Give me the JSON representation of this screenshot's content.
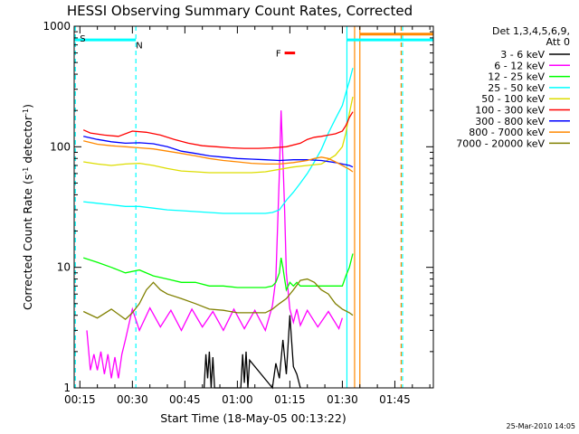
{
  "chart_data": {
    "type": "line",
    "title": "HESSI Observing Summary Count Rates, Corrected",
    "xlabel": "Start Time (18-May-05 00:13:22)",
    "ylabel_main": "Corrected Count Rate (s",
    "ylabel_sup1": "-1",
    "ylabel_mid": " detector",
    "ylabel_sup2": "-1",
    "ylabel_end": ")",
    "yscale": "log",
    "ylim": [
      1,
      1000
    ],
    "xlim_minutes": [
      13.37,
      116
    ],
    "x_ticks": [
      {
        "m": 15,
        "label": "00:15"
      },
      {
        "m": 30,
        "label": "00:30"
      },
      {
        "m": 45,
        "label": "00:45"
      },
      {
        "m": 60,
        "label": "01:00"
      },
      {
        "m": 75,
        "label": "01:15"
      },
      {
        "m": 90,
        "label": "01:30"
      },
      {
        "m": 105,
        "label": "01:45"
      }
    ],
    "y_ticks": [
      {
        "v": 1,
        "label": "1"
      },
      {
        "v": 10,
        "label": "10"
      },
      {
        "v": 100,
        "label": "100"
      },
      {
        "v": 1000,
        "label": "1000"
      }
    ],
    "legend_title": [
      "Det 1,3,4,5,6,9,",
      "Att 0"
    ],
    "timestamp": "25-Mar-2010 14:05",
    "series": [
      {
        "name": "3 - 6 keV",
        "color": "#000000",
        "x": [
          50.5,
          51,
          51.5,
          52,
          52.5,
          53,
          53.5,
          61,
          61.5,
          62,
          62.5,
          63,
          63.5,
          70,
          71,
          72,
          73,
          74,
          75,
          76,
          77,
          78
        ],
        "y": [
          1,
          1.9,
          1.2,
          2,
          1,
          1.8,
          1,
          1,
          1.9,
          1.1,
          2,
          1,
          1.7,
          1,
          1.6,
          1.2,
          2.5,
          1.3,
          4,
          1.5,
          1.3,
          1
        ]
      },
      {
        "name": "6 - 12 keV",
        "color": "#ff00ff",
        "x": [
          17,
          18,
          19,
          20,
          21,
          22,
          23,
          24,
          25,
          26,
          27,
          28,
          30,
          32,
          35,
          38,
          41,
          44,
          47,
          50,
          53,
          56,
          59,
          62,
          65,
          68,
          70,
          71,
          72,
          72.5,
          73,
          73.5,
          74,
          75,
          76,
          77,
          78,
          80,
          83,
          86,
          89,
          90
        ],
        "y": [
          3,
          1.4,
          1.9,
          1.4,
          2,
          1.3,
          1.9,
          1.2,
          1.8,
          1.2,
          1.9,
          2.5,
          4.5,
          3,
          4.6,
          3.2,
          4.4,
          3,
          4.5,
          3.2,
          4.3,
          3,
          4.5,
          3.1,
          4.4,
          3,
          4.8,
          8,
          60,
          200,
          80,
          30,
          9,
          4.5,
          3.5,
          4.5,
          3.3,
          4.4,
          3.2,
          4.3,
          3.1,
          3.8
        ]
      },
      {
        "name": "12 - 25 keV",
        "color": "#00ff00",
        "x": [
          16,
          20,
          24,
          28,
          32,
          36,
          40,
          44,
          48,
          52,
          56,
          60,
          64,
          68,
          70,
          71,
          72,
          72.5,
          73,
          73.5,
          74,
          75,
          76,
          77,
          78,
          80,
          82,
          84,
          86,
          88,
          90,
          91,
          92,
          93
        ],
        "y": [
          12,
          11,
          10,
          9,
          9.5,
          8.5,
          8,
          7.5,
          7.5,
          7,
          7,
          6.8,
          6.8,
          6.8,
          7,
          7.5,
          9,
          12,
          10,
          8,
          6.5,
          7.5,
          7,
          7.5,
          7,
          7,
          7,
          7,
          7,
          7,
          7,
          8.5,
          10,
          13
        ]
      },
      {
        "name": "25 - 50 keV",
        "color": "#00ffff",
        "x": [
          16,
          20,
          24,
          28,
          32,
          36,
          40,
          44,
          48,
          52,
          56,
          60,
          64,
          68,
          70,
          72,
          74,
          76,
          78,
          80,
          82,
          84,
          86,
          88,
          90,
          91,
          92,
          93
        ],
        "y": [
          35,
          34,
          33,
          32,
          32,
          31,
          30,
          29.5,
          29,
          28.5,
          28,
          28,
          28,
          28,
          28.5,
          30,
          36,
          42,
          50,
          60,
          75,
          95,
          130,
          170,
          220,
          280,
          350,
          450
        ]
      },
      {
        "name": "50 - 100 keV",
        "color": "#dddd00",
        "x": [
          16,
          20,
          24,
          28,
          32,
          36,
          40,
          44,
          48,
          52,
          56,
          60,
          64,
          68,
          72,
          76,
          80,
          84,
          88,
          90,
          91,
          92,
          93
        ],
        "y": [
          75,
          72,
          70,
          72,
          73,
          70,
          66,
          63,
          62,
          61,
          61,
          61,
          61,
          62,
          65,
          68,
          70,
          72,
          85,
          100,
          130,
          190,
          260
        ]
      },
      {
        "name": "100 - 300 keV",
        "color": "#ff0000",
        "x": [
          16,
          18,
          22,
          26,
          30,
          34,
          38,
          42,
          46,
          50,
          54,
          58,
          62,
          66,
          70,
          74,
          78,
          80,
          82,
          84,
          86,
          88,
          90,
          91,
          92,
          93
        ],
        "y": [
          138,
          130,
          125,
          122,
          135,
          132,
          125,
          115,
          107,
          102,
          100,
          98,
          97,
          97,
          98,
          100,
          107,
          115,
          120,
          122,
          125,
          128,
          135,
          150,
          175,
          195
        ]
      },
      {
        "name": "300 - 800 keV",
        "color": "#0000ff",
        "x": [
          16,
          20,
          24,
          28,
          32,
          36,
          40,
          44,
          48,
          52,
          56,
          60,
          64,
          68,
          72,
          76,
          80,
          84,
          88,
          90,
          92,
          93
        ],
        "y": [
          122,
          115,
          110,
          107,
          108,
          106,
          100,
          92,
          88,
          84,
          82,
          80,
          79,
          78,
          77,
          78,
          78,
          77,
          74,
          72,
          70,
          68
        ]
      },
      {
        "name": "800 - 7000 keV",
        "color": "#ff8800",
        "x": [
          16,
          20,
          24,
          28,
          32,
          36,
          40,
          44,
          48,
          52,
          56,
          60,
          64,
          68,
          72,
          76,
          80,
          82,
          84,
          86,
          88,
          90,
          92,
          93
        ],
        "y": [
          112,
          105,
          102,
          100,
          98,
          96,
          92,
          88,
          84,
          80,
          77,
          75,
          73,
          72,
          72,
          74,
          77,
          80,
          82,
          80,
          75,
          70,
          65,
          62
        ]
      },
      {
        "name": "7000 - 20000 keV",
        "color": "#808000",
        "x": [
          16,
          20,
          24,
          28,
          30,
          32,
          34,
          36,
          38,
          40,
          44,
          48,
          52,
          56,
          60,
          64,
          68,
          70,
          72,
          74,
          76,
          78,
          80,
          82,
          84,
          86,
          88,
          90,
          92,
          93
        ],
        "y": [
          4.3,
          3.8,
          4.5,
          3.7,
          4.2,
          5,
          6.5,
          7.5,
          6.5,
          6,
          5.5,
          5,
          4.5,
          4.4,
          4.2,
          4.2,
          4.2,
          4.5,
          5,
          5.5,
          6.5,
          7.8,
          8,
          7.5,
          6.5,
          6,
          5,
          4.5,
          4.2,
          4
        ]
      }
    ],
    "markers": [
      {
        "label": "S",
        "color": "#ff8800",
        "m": 15,
        "y": 800
      },
      {
        "label": "N",
        "color": "#00ffff",
        "m": 31,
        "y": 700
      },
      {
        "label": "F",
        "color": "#ff0000",
        "m": 71,
        "y": 600
      }
    ],
    "state_bars": [
      {
        "color": "#00ffff",
        "m1": 13.37,
        "m2": 31,
        "y": 770
      },
      {
        "color": "#00ffff",
        "m1": 91.3,
        "m2": 116,
        "y": 770
      },
      {
        "color": "#ff8800",
        "m1": 95,
        "m2": 116,
        "y": 860
      },
      {
        "color": "#ff0000",
        "m1": 73.5,
        "m2": 76.5,
        "y": 600
      }
    ],
    "vlines": [
      {
        "m": 13.7,
        "color": "#00ffff",
        "dash": true
      },
      {
        "m": 31,
        "color": "#00ffff",
        "dash": true
      },
      {
        "m": 91.3,
        "color": "#00ffff",
        "dash": false
      },
      {
        "m": 93.5,
        "color": "#ff8800",
        "dash": false
      },
      {
        "m": 95,
        "color": "#ff8800",
        "dash": false
      },
      {
        "m": 106.8,
        "color": "#ff8800",
        "dash": true
      },
      {
        "m": 107.2,
        "color": "#00ffff",
        "dash": true
      }
    ]
  }
}
